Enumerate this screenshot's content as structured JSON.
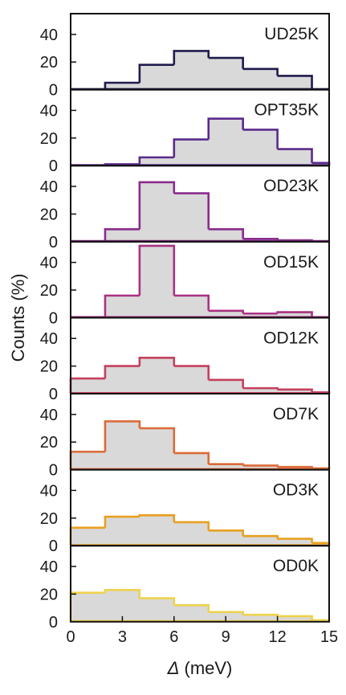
{
  "chart_data": {
    "type": "histogram",
    "xlabel_symbol": "Δ",
    "xlabel_unit": " (meV)",
    "ylabel": "Counts (%)",
    "xlim": [
      0,
      15
    ],
    "xticks": [
      0,
      3,
      6,
      9,
      12,
      15
    ],
    "ylim": [
      0,
      55
    ],
    "yticks": [
      0,
      20,
      40
    ],
    "bin_edges": [
      0,
      2,
      4,
      6,
      8,
      10,
      12,
      14,
      15
    ],
    "fill_color": "#d9d9d9",
    "panels": [
      {
        "name": "UD25K",
        "color": "#1f1b4d",
        "values": [
          0,
          5,
          18,
          28,
          23,
          15,
          10,
          0
        ]
      },
      {
        "name": "OPT35K",
        "color": "#5a2a8c",
        "values": [
          0,
          1,
          6,
          19,
          34,
          26,
          12,
          2
        ]
      },
      {
        "name": "OD23K",
        "color": "#8a2c8e",
        "values": [
          0,
          9,
          43,
          35,
          9,
          2,
          1,
          0
        ]
      },
      {
        "name": "OD15K",
        "color": "#a93282",
        "values": [
          0,
          16,
          52,
          16,
          5,
          3,
          4,
          0
        ]
      },
      {
        "name": "OD12K",
        "color": "#c4405e",
        "values": [
          11,
          20,
          26,
          20,
          10,
          4,
          3,
          1
        ]
      },
      {
        "name": "OD7K",
        "color": "#dc6a38",
        "values": [
          13,
          35,
          30,
          12,
          4,
          3,
          2,
          1
        ]
      },
      {
        "name": "OD3K",
        "color": "#e8a020",
        "values": [
          13,
          21,
          22,
          17,
          11,
          7,
          5,
          2
        ]
      },
      {
        "name": "OD0K",
        "color": "#eed24a",
        "values": [
          21,
          23,
          17,
          12,
          7,
          5,
          4,
          1
        ]
      }
    ]
  }
}
